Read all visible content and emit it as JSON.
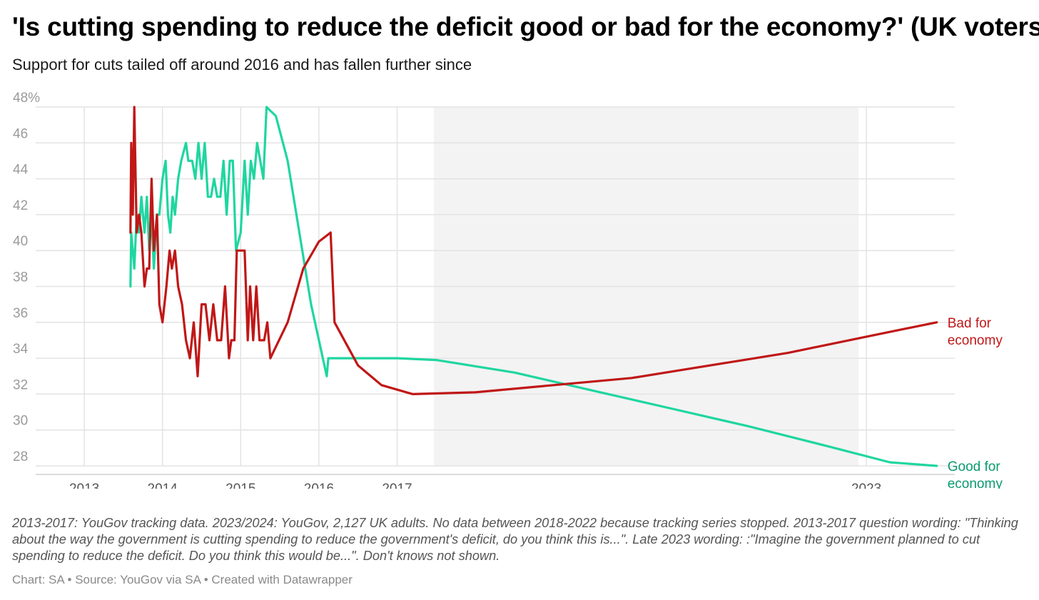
{
  "title": "'Is cutting spending to reduce the deficit good or bad for the economy?' (UK voters)",
  "subtitle": "Support for cuts tailed off around 2016 and has fallen further since",
  "notes": "2013-2017: YouGov tracking data. 2023/2024: YouGov, 2,127 UK adults. No data between 2018-2022 because tracking series stopped. 2013-2017 question wording: \"Thinking about the way the government is cutting spending to reduce the government's deficit, do you think this is...\". Late 2023 wording: :\"Imagine the government planned to cut spending to reduce the deficit. Do you think this would be...\". Don't knows not shown.",
  "credit": {
    "chart": "Chart: SA",
    "source": "Source: YouGov via SA",
    "tool": "Created with Datawrapper",
    "separator": "•"
  },
  "colors": {
    "good": "#1fd6a0",
    "good_label": "#0a9a6e",
    "bad": "#c01717",
    "grid": "#e3e3e3",
    "shade": "#f3f3f3"
  },
  "chart_data": {
    "type": "line",
    "x_unit": "year",
    "xlim": [
      2013,
      2024
    ],
    "ylim": [
      27,
      48
    ],
    "y_ticks": [
      {
        "value": 48,
        "label": "48%"
      },
      {
        "value": 46,
        "label": "46"
      },
      {
        "value": 44,
        "label": "44"
      },
      {
        "value": 42,
        "label": "42"
      },
      {
        "value": 40,
        "label": "40"
      },
      {
        "value": 38,
        "label": "38"
      },
      {
        "value": 36,
        "label": "36"
      },
      {
        "value": 34,
        "label": "34"
      },
      {
        "value": 32,
        "label": "32"
      },
      {
        "value": 30,
        "label": "30"
      },
      {
        "value": 28,
        "label": "28"
      }
    ],
    "x_ticks": [
      {
        "value": 2013,
        "label": "2013"
      },
      {
        "value": 2014,
        "label": "2014"
      },
      {
        "value": 2015,
        "label": "2015"
      },
      {
        "value": 2016,
        "label": "2016"
      },
      {
        "value": 2017,
        "label": "2017"
      },
      {
        "value": 2023,
        "label": "2023"
      }
    ],
    "shaded_range": [
      2017.47,
      2022.9
    ],
    "grid": true,
    "series": [
      {
        "name": "Good for economy",
        "label_lines": [
          "Good for",
          "economy"
        ],
        "color_key": "good",
        "points": [
          [
            2013.59,
            38
          ],
          [
            2013.6,
            41
          ],
          [
            2013.64,
            39
          ],
          [
            2013.67,
            42
          ],
          [
            2013.7,
            41
          ],
          [
            2013.73,
            43
          ],
          [
            2013.77,
            41
          ],
          [
            2013.8,
            43
          ],
          [
            2013.83,
            40
          ],
          [
            2013.86,
            42
          ],
          [
            2013.89,
            39
          ],
          [
            2013.93,
            42
          ],
          [
            2013.96,
            42
          ],
          [
            2014.0,
            44
          ],
          [
            2014.04,
            45
          ],
          [
            2014.07,
            42
          ],
          [
            2014.1,
            41
          ],
          [
            2014.13,
            43
          ],
          [
            2014.16,
            42
          ],
          [
            2014.2,
            44
          ],
          [
            2014.24,
            45
          ],
          [
            2014.3,
            46
          ],
          [
            2014.33,
            45
          ],
          [
            2014.38,
            45
          ],
          [
            2014.42,
            44
          ],
          [
            2014.46,
            46
          ],
          [
            2014.5,
            44
          ],
          [
            2014.54,
            46
          ],
          [
            2014.58,
            43
          ],
          [
            2014.62,
            43
          ],
          [
            2014.66,
            44
          ],
          [
            2014.7,
            43
          ],
          [
            2014.74,
            43
          ],
          [
            2014.78,
            45
          ],
          [
            2014.82,
            42
          ],
          [
            2014.86,
            45
          ],
          [
            2014.9,
            45
          ],
          [
            2014.94,
            40
          ],
          [
            2015.0,
            41
          ],
          [
            2015.05,
            45
          ],
          [
            2015.09,
            42
          ],
          [
            2015.13,
            45
          ],
          [
            2015.17,
            44
          ],
          [
            2015.21,
            46
          ],
          [
            2015.25,
            45
          ],
          [
            2015.29,
            44
          ],
          [
            2015.33,
            48
          ],
          [
            2015.45,
            47.5
          ],
          [
            2015.6,
            45
          ],
          [
            2015.75,
            41
          ],
          [
            2015.9,
            37
          ],
          [
            2016.0,
            35
          ],
          [
            2016.1,
            33
          ],
          [
            2016.12,
            34
          ],
          [
            2016.3,
            34
          ],
          [
            2017.0,
            34
          ],
          [
            2017.5,
            33.9
          ],
          [
            2018.5,
            33.2
          ],
          [
            2019.5,
            32.2
          ],
          [
            2020.5,
            31.2
          ],
          [
            2021.5,
            30.2
          ],
          [
            2022.5,
            29.1
          ],
          [
            2023.3,
            28.2
          ],
          [
            2023.9,
            28
          ]
        ]
      },
      {
        "name": "Bad for economy",
        "label_lines": [
          "Bad for",
          "economy"
        ],
        "color_key": "bad",
        "points": [
          [
            2013.59,
            41
          ],
          [
            2013.6,
            46
          ],
          [
            2013.62,
            42
          ],
          [
            2013.64,
            48
          ],
          [
            2013.67,
            41
          ],
          [
            2013.7,
            42
          ],
          [
            2013.73,
            41
          ],
          [
            2013.77,
            38
          ],
          [
            2013.8,
            39
          ],
          [
            2013.83,
            39
          ],
          [
            2013.86,
            44
          ],
          [
            2013.89,
            40
          ],
          [
            2013.93,
            42
          ],
          [
            2013.96,
            37
          ],
          [
            2014.0,
            36
          ],
          [
            2014.05,
            38
          ],
          [
            2014.09,
            40
          ],
          [
            2014.12,
            39
          ],
          [
            2014.16,
            40
          ],
          [
            2014.2,
            38
          ],
          [
            2014.25,
            37
          ],
          [
            2014.3,
            35
          ],
          [
            2014.35,
            34
          ],
          [
            2014.4,
            36
          ],
          [
            2014.45,
            33
          ],
          [
            2014.5,
            37
          ],
          [
            2014.55,
            37
          ],
          [
            2014.6,
            35
          ],
          [
            2014.65,
            37
          ],
          [
            2014.7,
            35
          ],
          [
            2014.75,
            35
          ],
          [
            2014.8,
            38
          ],
          [
            2014.85,
            34
          ],
          [
            2014.88,
            35
          ],
          [
            2014.92,
            35
          ],
          [
            2014.95,
            40
          ],
          [
            2015.05,
            40
          ],
          [
            2015.09,
            35
          ],
          [
            2015.12,
            38
          ],
          [
            2015.16,
            35
          ],
          [
            2015.2,
            38
          ],
          [
            2015.24,
            35
          ],
          [
            2015.3,
            35
          ],
          [
            2015.34,
            36
          ],
          [
            2015.38,
            34
          ],
          [
            2015.6,
            36
          ],
          [
            2015.8,
            39
          ],
          [
            2016.0,
            40.5
          ],
          [
            2016.15,
            41
          ],
          [
            2016.2,
            36
          ],
          [
            2016.5,
            33.6
          ],
          [
            2016.8,
            32.5
          ],
          [
            2017.2,
            32
          ],
          [
            2018.0,
            32.1
          ],
          [
            2019.0,
            32.5
          ],
          [
            2020.0,
            32.9
          ],
          [
            2021.0,
            33.6
          ],
          [
            2022.0,
            34.3
          ],
          [
            2023.0,
            35.2
          ],
          [
            2023.9,
            36
          ]
        ]
      }
    ]
  }
}
